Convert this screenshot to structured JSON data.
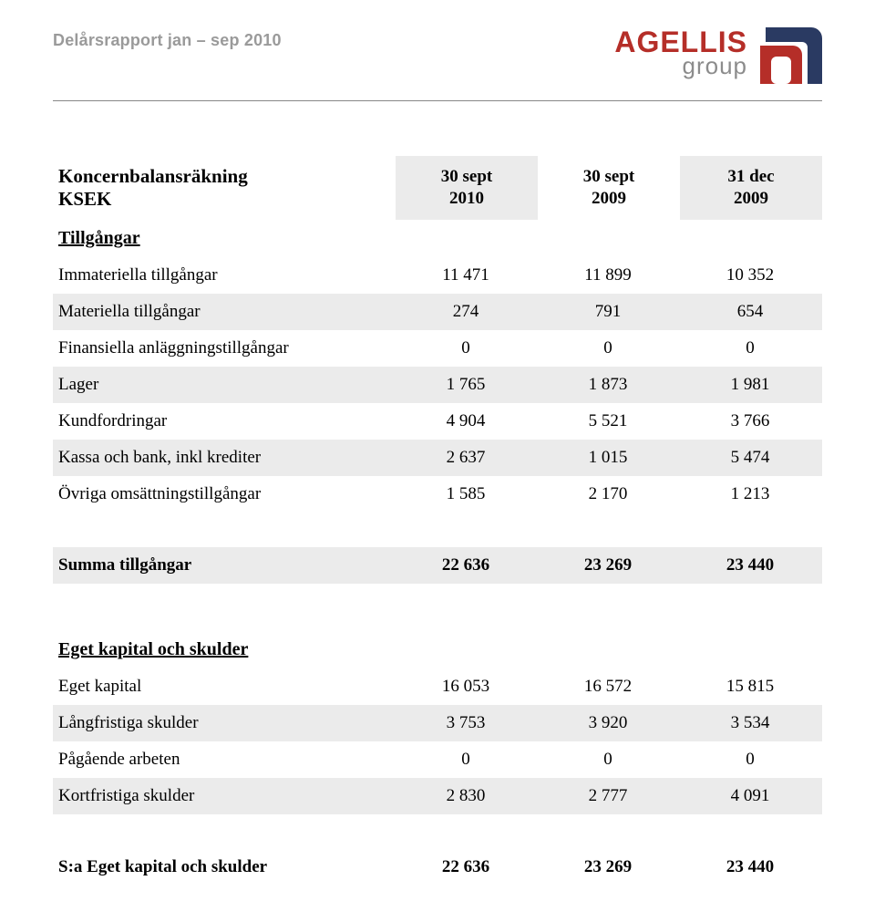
{
  "colors": {
    "shaded_bg": "#ebebeb",
    "header_text": "#9a9a9a",
    "logo_red": "#b52e28",
    "logo_gray": "#8c8c8c",
    "logo_blue": "#2a3a62",
    "hr": "#888888"
  },
  "header": {
    "title": "Delårsrapport jan – sep 2010",
    "logo_main": "AGELLIS",
    "logo_sub": "group"
  },
  "table": {
    "title_line1": "Koncernbalansräkning",
    "title_line2": "KSEK",
    "periods": [
      {
        "line1": "30 sept",
        "line2": "2010",
        "shaded": true
      },
      {
        "line1": "30 sept",
        "line2": "2009",
        "shaded": false
      },
      {
        "line1": "31 dec",
        "line2": "2009",
        "shaded": true
      }
    ],
    "sections": [
      {
        "heading": "Tillgångar",
        "rows": [
          {
            "label": "Immateriella tillgångar",
            "values": [
              "11 471",
              "11 899",
              "10 352"
            ],
            "shaded": false
          },
          {
            "label": "Materiella tillgångar",
            "values": [
              "274",
              "791",
              "654"
            ],
            "shaded": true
          },
          {
            "label": "Finansiella anläggningstillgångar",
            "values": [
              "0",
              "0",
              "0"
            ],
            "shaded": false
          },
          {
            "label": "Lager",
            "values": [
              "1 765",
              "1 873",
              "1 981"
            ],
            "shaded": true
          },
          {
            "label": "Kundfordringar",
            "values": [
              "4 904",
              "5 521",
              "3 766"
            ],
            "shaded": false
          },
          {
            "label": "Kassa och bank, inkl krediter",
            "values": [
              "2 637",
              "1 015",
              "5 474"
            ],
            "shaded": true
          },
          {
            "label": "Övriga omsättningstillgångar",
            "values": [
              "1 585",
              "2 170",
              "1 213"
            ],
            "shaded": false
          }
        ],
        "total": {
          "label": "Summa tillgångar",
          "values": [
            "22 636",
            "23 269",
            "23 440"
          ],
          "shaded": true
        }
      },
      {
        "heading": " Eget kapital och skulder",
        "rows": [
          {
            "label": "Eget kapital",
            "values": [
              "16 053",
              "16 572",
              "15 815"
            ],
            "shaded": false
          },
          {
            "label": "Långfristiga skulder",
            "values": [
              "3 753",
              "3 920",
              "3 534"
            ],
            "shaded": true
          },
          {
            "label": "Pågående arbeten",
            "values": [
              "0",
              "0",
              "0"
            ],
            "shaded": false
          },
          {
            "label": "Kortfristiga skulder",
            "values": [
              "2 830",
              "2 777",
              "4 091"
            ],
            "shaded": true
          }
        ],
        "total": {
          "label": "S:a Eget kapital och skulder",
          "values": [
            "22 636",
            "23 269",
            "23 440"
          ],
          "shaded": false
        }
      }
    ]
  }
}
